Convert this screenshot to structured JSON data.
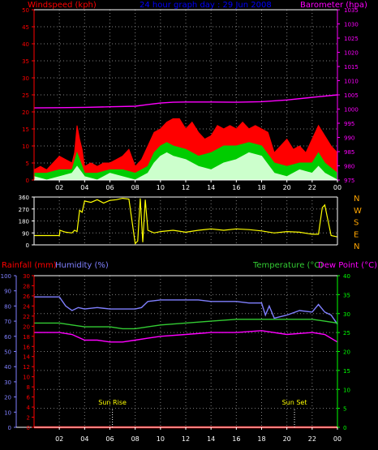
{
  "header": {
    "left_title": "Windspeed (kph)",
    "center_title": "24 hour graph day : 29 Jun 2008",
    "right_title": "Barometer (hpa)"
  },
  "colors": {
    "background": "#000000",
    "red": "#ff0000",
    "blue": "#0000ff",
    "magenta": "#ff00ff",
    "green": "#00cc00",
    "white": "#ffffff",
    "yellow": "#ffff00",
    "gray": "#808080",
    "bright_green": "#00ff00",
    "mid_green": "#33cc33",
    "lilac": "#8080ff",
    "light_green": "#ccffcc",
    "orange": "#ffa500"
  },
  "chart_data": [
    {
      "type": "area",
      "name": "wind-and-barometer",
      "x_ticks": [
        "02",
        "04",
        "06",
        "08",
        "10",
        "12",
        "14",
        "16",
        "18",
        "20",
        "22",
        "00"
      ],
      "x_unit": "hour",
      "x_range": [
        0,
        24
      ],
      "left_axis": {
        "label": "Windspeed (kph)",
        "range": [
          0,
          50
        ],
        "ticks": [
          0,
          5,
          10,
          15,
          20,
          25,
          30,
          35,
          40,
          45,
          50
        ]
      },
      "right_axis": {
        "label": "Barometer (hpa)",
        "range": [
          975,
          1035
        ],
        "ticks": [
          975,
          980,
          985,
          990,
          995,
          1000,
          1005,
          1010,
          1015,
          1020,
          1025,
          1030,
          1035
        ]
      },
      "grid": true,
      "series": [
        {
          "name": "gust",
          "axis": "left",
          "color": "#ff0000",
          "x": [
            0,
            0.5,
            1,
            1.5,
            2,
            2.5,
            3,
            3.2,
            3.4,
            3.6,
            3.8,
            4,
            4.5,
            5,
            5.5,
            6,
            6.5,
            7,
            7.5,
            8,
            8.5,
            9,
            9.5,
            10,
            10.5,
            11,
            11.5,
            12,
            12.5,
            13,
            13.5,
            14,
            14.5,
            15,
            15.5,
            16,
            16.5,
            17,
            17.5,
            18,
            18.5,
            19,
            19.5,
            20,
            20.5,
            21,
            21.5,
            22,
            22.5,
            23,
            23.5,
            24
          ],
          "y": [
            3,
            4,
            3,
            5,
            7,
            6,
            5,
            8,
            16,
            12,
            9,
            4,
            5,
            4,
            5,
            5,
            6,
            7,
            9,
            4,
            6,
            10,
            14,
            15,
            17,
            18,
            18,
            15,
            17,
            14,
            12,
            13,
            16,
            15,
            16,
            15,
            17,
            15,
            16,
            15,
            14,
            8,
            10,
            12,
            9,
            10,
            8,
            12,
            16,
            13,
            10,
            8
          ]
        },
        {
          "name": "average",
          "axis": "left",
          "color": "#00cc00",
          "x": [
            0,
            1,
            2,
            3,
            3.4,
            4,
            5,
            6,
            7,
            8,
            9,
            9.5,
            10,
            10.5,
            11,
            12,
            13,
            14,
            15,
            16,
            17,
            18,
            19,
            20,
            21,
            22,
            22.5,
            23,
            24
          ],
          "y": [
            2,
            2,
            3,
            3,
            8,
            2,
            2,
            3,
            3,
            2,
            4,
            8,
            10,
            11,
            10,
            9,
            7,
            8,
            10,
            10,
            11,
            10,
            5,
            4,
            5,
            5,
            8,
            5,
            2
          ]
        },
        {
          "name": "wind-speed",
          "axis": "left",
          "color": "#ccffcc",
          "x": [
            0,
            1,
            2,
            3,
            3.4,
            4,
            5,
            6,
            7,
            8,
            9,
            9.5,
            10,
            10.5,
            11,
            12,
            13,
            14,
            15,
            16,
            17,
            18,
            19,
            20,
            21,
            22,
            22.5,
            23,
            24
          ],
          "y": [
            1,
            0,
            1,
            2,
            4,
            1,
            0,
            2,
            1,
            0,
            2,
            5,
            7,
            8,
            7,
            6,
            4,
            3,
            5,
            6,
            8,
            7,
            2,
            1,
            3,
            2,
            4,
            2,
            0
          ]
        },
        {
          "name": "barometer",
          "axis": "right",
          "color": "#ff00ff",
          "x": [
            0,
            2,
            4,
            6,
            8,
            9,
            10,
            11,
            12,
            14,
            16,
            18,
            20,
            22,
            24
          ],
          "y": [
            1000.4,
            1000.5,
            1000.6,
            1000.8,
            1001.0,
            1001.6,
            1002.1,
            1002.4,
            1002.5,
            1002.5,
            1002.4,
            1002.6,
            1003.2,
            1004.1,
            1005.0
          ]
        }
      ]
    },
    {
      "type": "line",
      "name": "wind-direction",
      "x_range": [
        0,
        24
      ],
      "left_axis": {
        "range": [
          0,
          360
        ],
        "ticks": [
          0,
          90,
          180,
          270,
          360
        ]
      },
      "right_labels": [
        "N",
        "W",
        "S",
        "E",
        "N"
      ],
      "grid": true,
      "series": [
        {
          "name": "wind-direction",
          "color": "#ffff00",
          "x": [
            0,
            1,
            2,
            2.05,
            2.5,
            3,
            3.2,
            3.4,
            3.6,
            3.8,
            4,
            4.5,
            5,
            5.5,
            6,
            6.5,
            7,
            7.5,
            8,
            8.2,
            8.4,
            8.6,
            8.8,
            9,
            9.5,
            10,
            11,
            12,
            13,
            14,
            15,
            16,
            17,
            18,
            19,
            20,
            21,
            22,
            22.5,
            22.8,
            23,
            23.5,
            24
          ],
          "y": [
            70,
            70,
            70,
            110,
            95,
            90,
            110,
            100,
            260,
            245,
            330,
            320,
            340,
            315,
            335,
            340,
            350,
            345,
            10,
            30,
            350,
            20,
            340,
            110,
            90,
            100,
            110,
            95,
            110,
            120,
            110,
            120,
            115,
            105,
            90,
            100,
            95,
            80,
            80,
            280,
            300,
            70,
            60
          ]
        }
      ]
    },
    {
      "type": "line",
      "name": "temperature-humidity",
      "x_range": [
        0,
        24
      ],
      "legend": [
        "Rainfall (mm)",
        "Humidity (%)",
        "Temperature (°C)",
        "Dew Point (°C)"
      ],
      "axis_rainfall": {
        "label": "Rainfall (mm)",
        "range": [
          0,
          30
        ],
        "ticks": [
          0,
          2,
          4,
          6,
          8,
          10,
          12,
          14,
          16,
          18,
          20,
          22,
          24,
          26,
          28,
          30
        ]
      },
      "axis_humidity": {
        "label": "Humidity (%)",
        "range": [
          0,
          100
        ],
        "ticks": [
          0,
          10,
          20,
          30,
          40,
          50,
          60,
          70,
          80,
          90,
          100
        ]
      },
      "axis_temperature": {
        "label": "Temperature (°C)",
        "range": [
          0,
          40
        ],
        "ticks": [
          0,
          5,
          10,
          15,
          20,
          25,
          30,
          35,
          40
        ]
      },
      "annotations": [
        {
          "label": "Sun Rise",
          "x": 6.2
        },
        {
          "label": "Sun Set",
          "x": 20.6
        }
      ],
      "grid": true,
      "series": [
        {
          "name": "humidity",
          "axis": "humidity",
          "color": "#8080ff",
          "x": [
            0,
            1,
            2,
            2.5,
            3,
            3.5,
            4,
            5,
            6,
            7,
            8,
            8.5,
            9,
            10,
            11,
            12,
            13,
            14,
            15,
            16,
            17,
            18,
            18.3,
            18.6,
            19,
            20,
            21,
            22,
            22.5,
            23,
            23.5,
            24
          ],
          "y": [
            86,
            86,
            86,
            80,
            77,
            79,
            78,
            79,
            78,
            78,
            78,
            79,
            83,
            84,
            84,
            84,
            84,
            83,
            83,
            83,
            82,
            82,
            74,
            80,
            72,
            74,
            77,
            76,
            81,
            76,
            74,
            68
          ]
        },
        {
          "name": "temperature",
          "axis": "temperature",
          "color": "#33cc33",
          "x": [
            0,
            2,
            3,
            4,
            5,
            6,
            7,
            8,
            9,
            10,
            12,
            14,
            16,
            18,
            20,
            22,
            23,
            24
          ],
          "y": [
            27.5,
            27.5,
            27,
            26.5,
            26.5,
            26.5,
            26,
            26,
            26.5,
            27,
            27.5,
            28,
            28.5,
            28.5,
            28.5,
            28.5,
            28,
            27.5
          ]
        },
        {
          "name": "dew-point",
          "axis": "temperature",
          "color": "#ff00ff",
          "x": [
            0,
            2,
            3,
            4,
            5,
            6,
            7,
            8,
            9,
            10,
            12,
            14,
            16,
            18,
            20,
            22,
            23,
            24
          ],
          "y": [
            25,
            25,
            24.5,
            23,
            23,
            22.5,
            22.5,
            23,
            23.5,
            24,
            24.5,
            25,
            25,
            25.5,
            24.5,
            25,
            24.5,
            22.5
          ]
        },
        {
          "name": "rainfall",
          "axis": "rainfall",
          "color": "#ff0000",
          "x": [
            0,
            24
          ],
          "y": [
            0,
            0
          ]
        }
      ]
    }
  ]
}
